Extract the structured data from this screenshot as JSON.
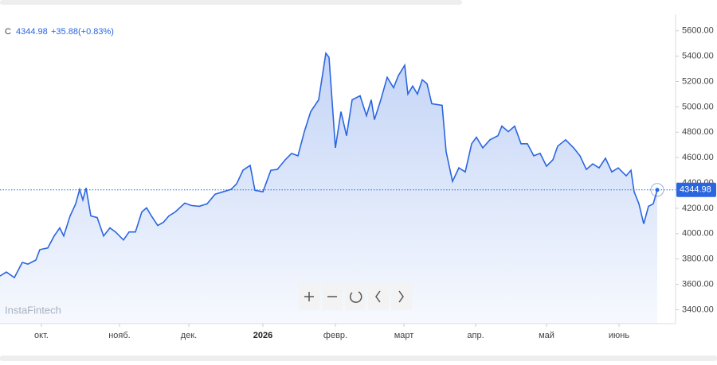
{
  "chart_data": {
    "type": "area",
    "symbol": "C",
    "change": "+35.88",
    "change_pct": "(+0.83%)",
    "watermark": "InstaFintech",
    "color": "#2a66e0",
    "x": [
      0,
      8,
      18,
      28,
      35,
      45,
      50,
      60,
      68,
      75,
      80,
      88,
      95,
      100,
      104,
      108,
      114,
      122,
      130,
      138,
      145,
      155,
      162,
      170,
      178,
      184,
      190,
      198,
      205,
      212,
      220,
      232,
      240,
      250,
      260,
      270,
      280,
      290,
      297,
      305,
      314,
      320,
      330,
      340,
      348,
      358,
      366,
      374,
      382,
      390,
      400,
      409,
      413,
      421,
      428,
      435,
      442,
      452,
      460,
      466,
      470,
      478,
      486,
      494,
      500,
      508,
      512,
      518,
      524,
      530,
      536,
      542,
      555,
      560,
      568,
      576,
      584,
      592,
      598,
      606,
      615,
      625,
      630,
      638,
      646,
      654,
      662,
      670,
      678,
      686,
      694,
      700,
      710,
      720,
      728,
      736,
      744,
      752,
      760,
      768,
      776,
      786,
      792,
      796,
      802,
      808,
      814,
      820,
      825
    ],
    "values": [
      3666,
      3697,
      3653,
      3773,
      3760,
      3792,
      3874,
      3887,
      3982,
      4045,
      3982,
      4140,
      4235,
      4349,
      4266,
      4361,
      4140,
      4127,
      3982,
      4045,
      4013,
      3950,
      4013,
      4013,
      4171,
      4203,
      4140,
      4064,
      4089,
      4140,
      4171,
      4241,
      4222,
      4216,
      4235,
      4311,
      4330,
      4349,
      4393,
      4500,
      4538,
      4342,
      4330,
      4500,
      4506,
      4582,
      4633,
      4614,
      4804,
      4962,
      5056,
      5423,
      5391,
      4677,
      4962,
      4772,
      5056,
      5088,
      4930,
      5056,
      4899,
      5056,
      5233,
      5151,
      5246,
      5328,
      5101,
      5164,
      5101,
      5214,
      5183,
      5025,
      5012,
      4646,
      4412,
      4519,
      4487,
      4709,
      4760,
      4677,
      4740,
      4772,
      4848,
      4804,
      4848,
      4709,
      4709,
      4614,
      4633,
      4532,
      4582,
      4690,
      4740,
      4677,
      4614,
      4506,
      4550,
      4519,
      4595,
      4487,
      4519,
      4456,
      4500,
      4330,
      4235,
      4077,
      4216,
      4235,
      4344.98
    ],
    "xlim": [
      0,
      848
    ],
    "xticks": [
      {
        "value": 52,
        "label": "окт."
      },
      {
        "value": 150,
        "label": "нояб."
      },
      {
        "value": 237,
        "label": "дек."
      },
      {
        "value": 330,
        "label": "2026"
      },
      {
        "value": 421,
        "label": "февр."
      },
      {
        "value": 507,
        "label": "март"
      },
      {
        "value": 597,
        "label": "апр."
      },
      {
        "value": 686,
        "label": "май"
      },
      {
        "value": 777,
        "label": "июнь"
      }
    ],
    "ylim": [
      3290,
      5730
    ],
    "yticks": [
      {
        "value": 3400,
        "label": "3400.00"
      },
      {
        "value": 3600,
        "label": "3600.00"
      },
      {
        "value": 3800,
        "label": "3800.00"
      },
      {
        "value": 4000,
        "label": "4000.00"
      },
      {
        "value": 4200,
        "label": "4200.00"
      },
      {
        "value": 4400,
        "label": "4400.00"
      },
      {
        "value": 4600,
        "label": "4600.00"
      },
      {
        "value": 4800,
        "label": "4800.00"
      },
      {
        "value": 5000,
        "label": "5000.00"
      },
      {
        "value": 5200,
        "label": "5200.00"
      },
      {
        "value": 5400,
        "label": "5400.00"
      },
      {
        "value": 5600,
        "label": "5600.00"
      }
    ]
  }
}
